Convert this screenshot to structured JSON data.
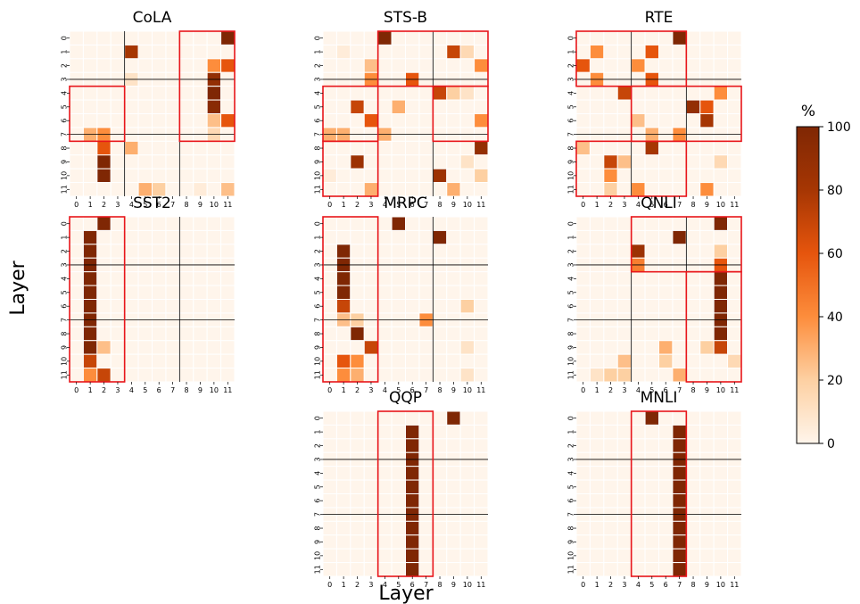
{
  "figure": {
    "ylabel": "Layer",
    "xlabel": "Layer",
    "colorbar": {
      "label": "%",
      "ticks": [
        0,
        20,
        40,
        60,
        80,
        100
      ],
      "colors": [
        "#fff5eb",
        "#fdd0a2",
        "#fd8d3c",
        "#e6550d",
        "#a63603",
        "#7f2704"
      ]
    },
    "base_color": "#fff5eb",
    "grid_line_color": "#000000",
    "box_color": "#e8161b"
  },
  "chart_data": [
    {
      "type": "heatmap",
      "title": "CoLA",
      "x_ticks": [
        "0",
        "1",
        "2",
        "3",
        "4",
        "5",
        "6",
        "7",
        "8",
        "9",
        "10",
        "11"
      ],
      "y_ticks": [
        "0",
        "1",
        "2",
        "3",
        "4",
        "5",
        "6",
        "7",
        "8",
        "9",
        "10",
        "11"
      ],
      "cells": [
        [
          0,
          11,
          100
        ],
        [
          1,
          4,
          80
        ],
        [
          2,
          10,
          40
        ],
        [
          2,
          11,
          60
        ],
        [
          3,
          4,
          10
        ],
        [
          3,
          10,
          90
        ],
        [
          4,
          10,
          100
        ],
        [
          5,
          10,
          95
        ],
        [
          6,
          10,
          25
        ],
        [
          6,
          11,
          60
        ],
        [
          7,
          1,
          30
        ],
        [
          7,
          2,
          40
        ],
        [
          7,
          10,
          15
        ],
        [
          8,
          2,
          60
        ],
        [
          8,
          4,
          30
        ],
        [
          9,
          2,
          100
        ],
        [
          10,
          2,
          100
        ],
        [
          11,
          5,
          30
        ],
        [
          11,
          6,
          20
        ],
        [
          11,
          11,
          25
        ],
        [
          11,
          9,
          5
        ]
      ],
      "boxes": [
        [
          0,
          8,
          8,
          12
        ],
        [
          4,
          0,
          8,
          4
        ]
      ]
    },
    {
      "type": "heatmap",
      "title": "STS-B",
      "x_ticks": [
        "0",
        "1",
        "2",
        "3",
        "4",
        "5",
        "6",
        "7",
        "8",
        "9",
        "10",
        "11"
      ],
      "y_ticks": [
        "0",
        "1",
        "2",
        "3",
        "4",
        "5",
        "6",
        "7",
        "8",
        "9",
        "10",
        "11"
      ],
      "cells": [
        [
          0,
          4,
          100
        ],
        [
          1,
          1,
          5
        ],
        [
          1,
          9,
          70
        ],
        [
          1,
          10,
          15
        ],
        [
          2,
          3,
          25
        ],
        [
          2,
          11,
          40
        ],
        [
          3,
          3,
          40
        ],
        [
          3,
          6,
          60
        ],
        [
          4,
          8,
          70
        ],
        [
          4,
          9,
          20
        ],
        [
          4,
          10,
          10
        ],
        [
          5,
          2,
          70
        ],
        [
          5,
          5,
          30
        ],
        [
          6,
          3,
          60
        ],
        [
          6,
          11,
          40
        ],
        [
          7,
          0,
          30
        ],
        [
          7,
          1,
          30
        ],
        [
          7,
          4,
          30
        ],
        [
          8,
          11,
          90
        ],
        [
          9,
          2,
          85
        ],
        [
          9,
          10,
          10
        ],
        [
          10,
          0,
          5
        ],
        [
          10,
          8,
          85
        ],
        [
          10,
          11,
          20
        ],
        [
          11,
          3,
          30
        ],
        [
          11,
          9,
          30
        ]
      ],
      "boxes": [
        [
          0,
          4,
          4,
          12
        ],
        [
          4,
          0,
          8,
          4
        ],
        [
          4,
          8,
          8,
          12
        ],
        [
          8,
          0,
          12,
          4
        ]
      ]
    },
    {
      "type": "heatmap",
      "title": "RTE",
      "x_ticks": [
        "0",
        "1",
        "2",
        "3",
        "4",
        "5",
        "6",
        "7",
        "8",
        "9",
        "10",
        "11"
      ],
      "y_ticks": [
        "0",
        "1",
        "2",
        "3",
        "4",
        "5",
        "6",
        "7",
        "8",
        "9",
        "10",
        "11"
      ],
      "cells": [
        [
          0,
          7,
          100
        ],
        [
          1,
          1,
          40
        ],
        [
          1,
          5,
          60
        ],
        [
          2,
          0,
          60
        ],
        [
          2,
          4,
          40
        ],
        [
          3,
          1,
          40
        ],
        [
          3,
          5,
          60
        ],
        [
          4,
          3,
          70
        ],
        [
          4,
          10,
          40
        ],
        [
          5,
          8,
          90
        ],
        [
          5,
          9,
          60
        ],
        [
          6,
          4,
          25
        ],
        [
          6,
          9,
          80
        ],
        [
          7,
          5,
          30
        ],
        [
          7,
          7,
          40
        ],
        [
          8,
          0,
          25
        ],
        [
          8,
          5,
          80
        ],
        [
          9,
          2,
          70
        ],
        [
          9,
          3,
          25
        ],
        [
          9,
          10,
          15
        ],
        [
          10,
          2,
          40
        ],
        [
          11,
          2,
          20
        ],
        [
          11,
          4,
          40
        ],
        [
          11,
          9,
          40
        ]
      ],
      "boxes": [
        [
          0,
          0,
          4,
          8
        ],
        [
          4,
          4,
          8,
          12
        ],
        [
          8,
          0,
          12,
          8
        ]
      ]
    },
    {
      "type": "heatmap",
      "title": "SST2",
      "x_ticks": [
        "0",
        "1",
        "2",
        "3",
        "4",
        "5",
        "6",
        "7",
        "8",
        "9",
        "10",
        "11"
      ],
      "y_ticks": [
        "0",
        "1",
        "2",
        "3",
        "4",
        "5",
        "6",
        "7",
        "8",
        "9",
        "10",
        "11"
      ],
      "cells": [
        [
          0,
          2,
          100
        ],
        [
          1,
          1,
          100
        ],
        [
          2,
          1,
          100
        ],
        [
          3,
          1,
          100
        ],
        [
          4,
          1,
          100
        ],
        [
          5,
          1,
          100
        ],
        [
          6,
          1,
          100
        ],
        [
          7,
          1,
          100
        ],
        [
          8,
          1,
          100
        ],
        [
          9,
          1,
          100
        ],
        [
          9,
          2,
          25
        ],
        [
          10,
          1,
          70
        ],
        [
          11,
          1,
          40
        ],
        [
          11,
          2,
          70
        ]
      ],
      "boxes": [
        [
          0,
          0,
          12,
          4
        ]
      ]
    },
    {
      "type": "heatmap",
      "title": "MRPC",
      "x_ticks": [
        "0",
        "1",
        "2",
        "3",
        "4",
        "5",
        "6",
        "7",
        "8",
        "9",
        "10",
        "11"
      ],
      "y_ticks": [
        "0",
        "1",
        "2",
        "3",
        "4",
        "5",
        "6",
        "7",
        "8",
        "9",
        "10",
        "11"
      ],
      "cells": [
        [
          0,
          5,
          100
        ],
        [
          1,
          8,
          100
        ],
        [
          2,
          1,
          100
        ],
        [
          3,
          1,
          100
        ],
        [
          4,
          1,
          100
        ],
        [
          5,
          1,
          100
        ],
        [
          6,
          1,
          70
        ],
        [
          6,
          10,
          20
        ],
        [
          7,
          1,
          25
        ],
        [
          7,
          2,
          20
        ],
        [
          7,
          7,
          40
        ],
        [
          8,
          2,
          100
        ],
        [
          9,
          3,
          70
        ],
        [
          9,
          10,
          10
        ],
        [
          10,
          1,
          60
        ],
        [
          10,
          2,
          40
        ],
        [
          11,
          1,
          40
        ],
        [
          11,
          2,
          30
        ],
        [
          11,
          10,
          10
        ]
      ],
      "boxes": [
        [
          0,
          0,
          12,
          4
        ]
      ]
    },
    {
      "type": "heatmap",
      "title": "QNLI",
      "x_ticks": [
        "0",
        "1",
        "2",
        "3",
        "4",
        "5",
        "6",
        "7",
        "8",
        "9",
        "10",
        "11"
      ],
      "y_ticks": [
        "0",
        "1",
        "2",
        "3",
        "4",
        "5",
        "6",
        "7",
        "8",
        "9",
        "10",
        "11"
      ],
      "cells": [
        [
          0,
          10,
          100
        ],
        [
          1,
          7,
          100
        ],
        [
          2,
          4,
          85
        ],
        [
          2,
          10,
          20
        ],
        [
          3,
          4,
          45
        ],
        [
          3,
          10,
          60
        ],
        [
          4,
          10,
          100
        ],
        [
          5,
          10,
          100
        ],
        [
          6,
          10,
          100
        ],
        [
          7,
          10,
          100
        ],
        [
          8,
          10,
          100
        ],
        [
          9,
          6,
          30
        ],
        [
          9,
          9,
          20
        ],
        [
          9,
          10,
          70
        ],
        [
          10,
          3,
          25
        ],
        [
          10,
          6,
          20
        ],
        [
          10,
          11,
          15
        ],
        [
          11,
          1,
          10
        ],
        [
          11,
          2,
          20
        ],
        [
          11,
          3,
          20
        ],
        [
          11,
          7,
          30
        ]
      ],
      "boxes": [
        [
          0,
          4,
          4,
          12
        ],
        [
          4,
          8,
          12,
          12
        ]
      ]
    },
    {
      "type": "heatmap",
      "title": "QQP",
      "x_ticks": [
        "0",
        "1",
        "2",
        "3",
        "4",
        "5",
        "6",
        "7",
        "8",
        "9",
        "10",
        "11"
      ],
      "y_ticks": [
        "0",
        "1",
        "2",
        "3",
        "4",
        "5",
        "6",
        "7",
        "8",
        "9",
        "10",
        "11"
      ],
      "cells": [
        [
          0,
          9,
          100
        ],
        [
          1,
          6,
          100
        ],
        [
          2,
          6,
          100
        ],
        [
          3,
          6,
          100
        ],
        [
          4,
          6,
          100
        ],
        [
          5,
          6,
          100
        ],
        [
          6,
          6,
          100
        ],
        [
          7,
          6,
          100
        ],
        [
          8,
          6,
          100
        ],
        [
          9,
          6,
          100
        ],
        [
          10,
          6,
          100
        ],
        [
          11,
          6,
          100
        ]
      ],
      "boxes": [
        [
          0,
          4,
          12,
          8
        ]
      ]
    },
    {
      "type": "heatmap",
      "title": "MNLI",
      "x_ticks": [
        "0",
        "1",
        "2",
        "3",
        "4",
        "5",
        "6",
        "7",
        "8",
        "9",
        "10",
        "11"
      ],
      "y_ticks": [
        "0",
        "1",
        "2",
        "3",
        "4",
        "5",
        "6",
        "7",
        "8",
        "9",
        "10",
        "11"
      ],
      "cells": [
        [
          0,
          5,
          100
        ],
        [
          1,
          7,
          100
        ],
        [
          2,
          7,
          100
        ],
        [
          3,
          7,
          100
        ],
        [
          4,
          7,
          100
        ],
        [
          5,
          7,
          100
        ],
        [
          6,
          7,
          100
        ],
        [
          7,
          7,
          100
        ],
        [
          8,
          7,
          100
        ],
        [
          9,
          7,
          100
        ],
        [
          10,
          7,
          100
        ],
        [
          11,
          7,
          100
        ]
      ],
      "boxes": [
        [
          0,
          4,
          12,
          8
        ]
      ]
    }
  ]
}
